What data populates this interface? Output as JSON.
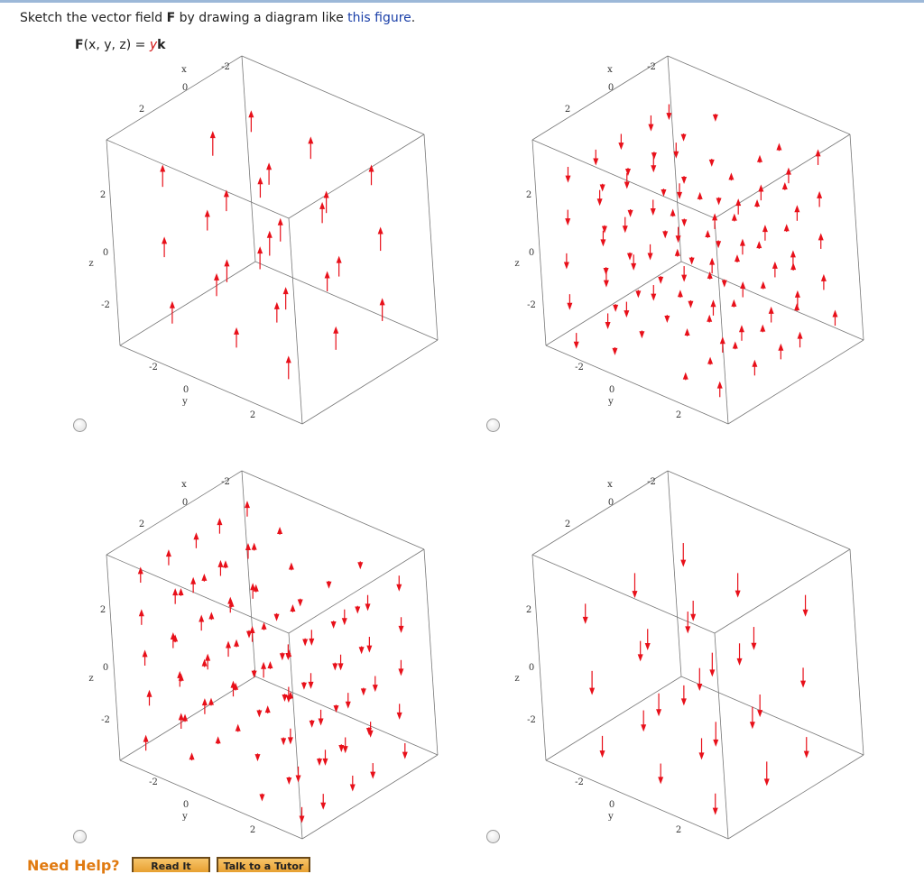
{
  "question": {
    "prompt": {
      "before": "Sketch the vector field ",
      "field": "F",
      "middle": " by drawing a diagram like ",
      "link": "this figure",
      "after": "."
    },
    "formula": {
      "name": "F",
      "args": "(x, y, z) = ",
      "component": "y",
      "unit": "k"
    }
  },
  "plots": [
    {
      "x_label": "x",
      "x_ticks": [
        "-2",
        "0",
        "2"
      ],
      "y_label": "y",
      "y_ticks": [
        "-2",
        "0",
        "2"
      ],
      "z_label": "z",
      "z_ticks": [
        "2",
        "0",
        "-2"
      ]
    },
    {
      "x_label": "x",
      "x_ticks": [
        "-2",
        "0",
        "2"
      ],
      "y_label": "y",
      "y_ticks": [
        "-2",
        "0",
        "2"
      ],
      "z_label": "z",
      "z_ticks": [
        "2",
        "0",
        "-2"
      ]
    },
    {
      "x_label": "x",
      "x_ticks": [
        "-2",
        "0",
        "2"
      ],
      "y_label": "y",
      "y_ticks": [
        "-2",
        "0",
        "2"
      ],
      "z_label": "z",
      "z_ticks": [
        "2",
        "0",
        "-2"
      ]
    },
    {
      "x_label": "x",
      "x_ticks": [
        "-2",
        "0",
        "2"
      ],
      "y_label": "y",
      "y_ticks": [
        "-2",
        "0",
        "2"
      ],
      "z_label": "z",
      "z_ticks": [
        "2",
        "0",
        "-2"
      ]
    }
  ],
  "help": {
    "label": "Need Help?",
    "buttons": [
      "Read It",
      "Talk to a Tutor"
    ]
  }
}
